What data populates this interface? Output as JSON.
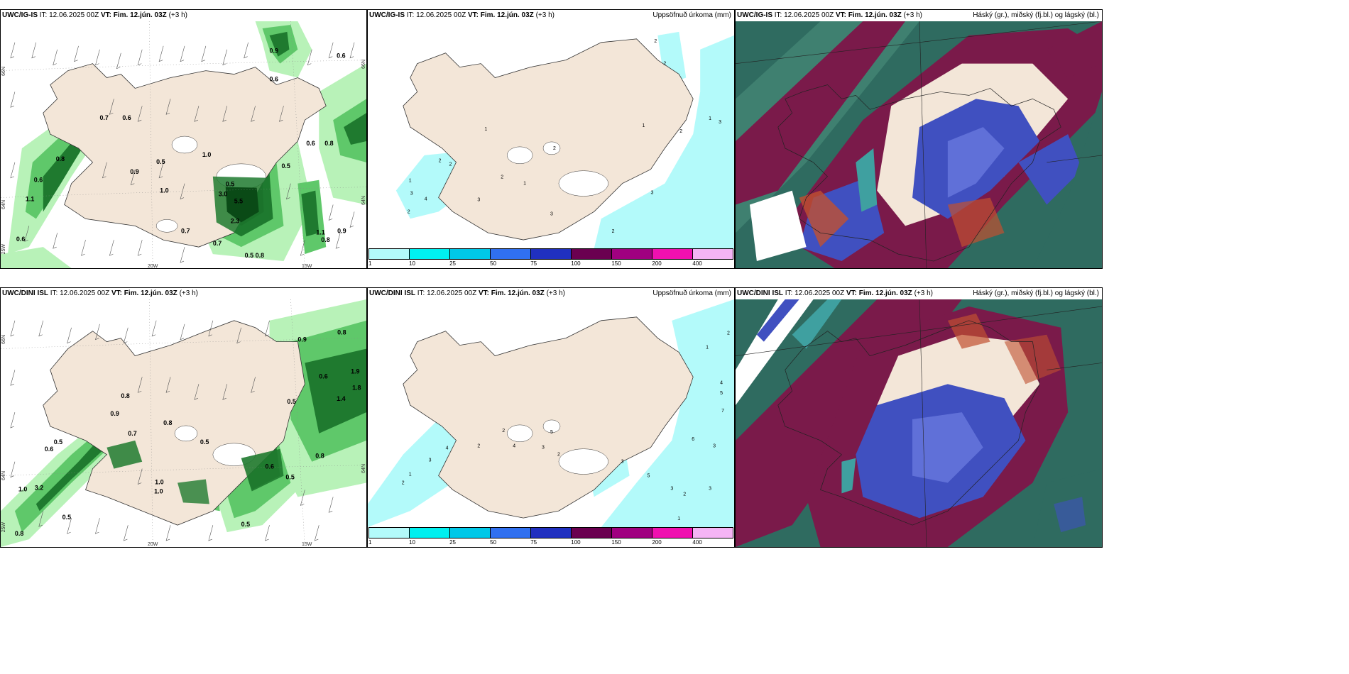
{
  "panels": [
    {
      "model": "UWC/IG-IS",
      "it_label": "IT:",
      "it": "12.06.2025 00Z",
      "vt_label": "VT:",
      "vt": "Fim. 12.jún. 03Z",
      "lead": "(+3 h)",
      "title": ""
    },
    {
      "model": "UWC/IG-IS",
      "it_label": "IT:",
      "it": "12.06.2025 00Z",
      "vt_label": "VT:",
      "vt": "Fim. 12.jún. 03Z",
      "lead": "(+3 h)",
      "title": "Uppsöfnuð úrkoma (mm)"
    },
    {
      "model": "UWC/IG-IS",
      "it_label": "IT:",
      "it": "12.06.2025 00Z",
      "vt_label": "VT:",
      "vt": "Fim. 12.jún. 03Z",
      "lead": "(+3 h)",
      "title": "Háský (gr.), miðský (fj.bl.) og lágský (bl.)"
    },
    {
      "model": "UWC/DINI ISL",
      "it_label": "IT:",
      "it": "12.06.2025 00Z",
      "vt_label": "VT:",
      "vt": "Fim. 12.jún. 03Z",
      "lead": "(+3 h)",
      "title": ""
    },
    {
      "model": "UWC/DINI ISL",
      "it_label": "IT:",
      "it": "12.06.2025 00Z",
      "vt_label": "VT:",
      "vt": "Fim. 12.jún. 03Z",
      "lead": "(+3 h)",
      "title": "Uppsöfnuð úrkoma (mm)"
    },
    {
      "model": "UWC/DINI ISL",
      "it_label": "IT:",
      "it": "12.06.2025 00Z",
      "vt_label": "VT:",
      "vt": "Fim. 12.jún. 03Z",
      "lead": "(+3 h)",
      "title": "Háský (gr.), miðský (fj.bl.) og lágský (bl.)"
    }
  ],
  "axis_labels": {
    "lat_66": "66N",
    "lat_64": "64N",
    "lon_20": "20W",
    "lon_15": "15W",
    "lon_25": "25W"
  },
  "colorbar": {
    "labels": [
      "1",
      "10",
      "25",
      "50",
      "75",
      "100",
      "150",
      "200",
      "400"
    ],
    "colors": [
      "#b3fafa",
      "#00f0f0",
      "#00c8e8",
      "#3070f0",
      "#2030c0",
      "#6a0050",
      "#a00080",
      "#f010b0",
      "#f4b4f4"
    ]
  },
  "colors": {
    "land": "#f3e6d8",
    "precip_light": "#b8f2b8",
    "precip_mid": "#5fc86a",
    "precip_heavy": "#1f7a2f",
    "precip_dark": "#0a4a16",
    "accum_sea": "#b3fafa",
    "cloud_high": "#2f6b60",
    "cloud_mid": "#7a1a4a",
    "cloud_low": "#4050c0"
  },
  "labels_precip_top": [
    "0.9",
    "0.6",
    "0.6",
    "0.7",
    "0.6",
    "0.5",
    "0.8",
    "1.0",
    "1.1",
    "0.6",
    "0.5",
    "0.9",
    "1.0",
    "0.5",
    "5.5",
    "3.0",
    "2.3",
    "0.7",
    "0.5",
    "0.8",
    "0.6",
    "0.8",
    "1.1",
    "0.8",
    "0.9",
    "0.6",
    "0.7"
  ],
  "labels_precip_bottom": [
    "0.9",
    "0.8",
    "0.5",
    "0.6",
    "0.8",
    "0.9",
    "0.5",
    "0.6",
    "1.0",
    "0.8",
    "0.7",
    "0.5",
    "3.2",
    "1.0",
    "0.5",
    "0.8",
    "1.9",
    "1.8",
    "1.4",
    "0.5",
    "0.6",
    "1.0",
    "0.5",
    "0.8"
  ],
  "labels_accum_top": [
    "2",
    "2",
    "4",
    "1",
    "3",
    "3",
    "2",
    "1",
    "2",
    "1",
    "3",
    "2",
    "1",
    "2",
    "2",
    "2",
    "1",
    "3",
    "3",
    "2"
  ],
  "labels_accum_bottom": [
    "2",
    "1",
    "4",
    "3",
    "2",
    "4",
    "5",
    "3",
    "2",
    "2",
    "3",
    "4",
    "5",
    "7",
    "6",
    "3",
    "3",
    "2",
    "1",
    "5",
    "2",
    "1",
    "1",
    "3"
  ]
}
